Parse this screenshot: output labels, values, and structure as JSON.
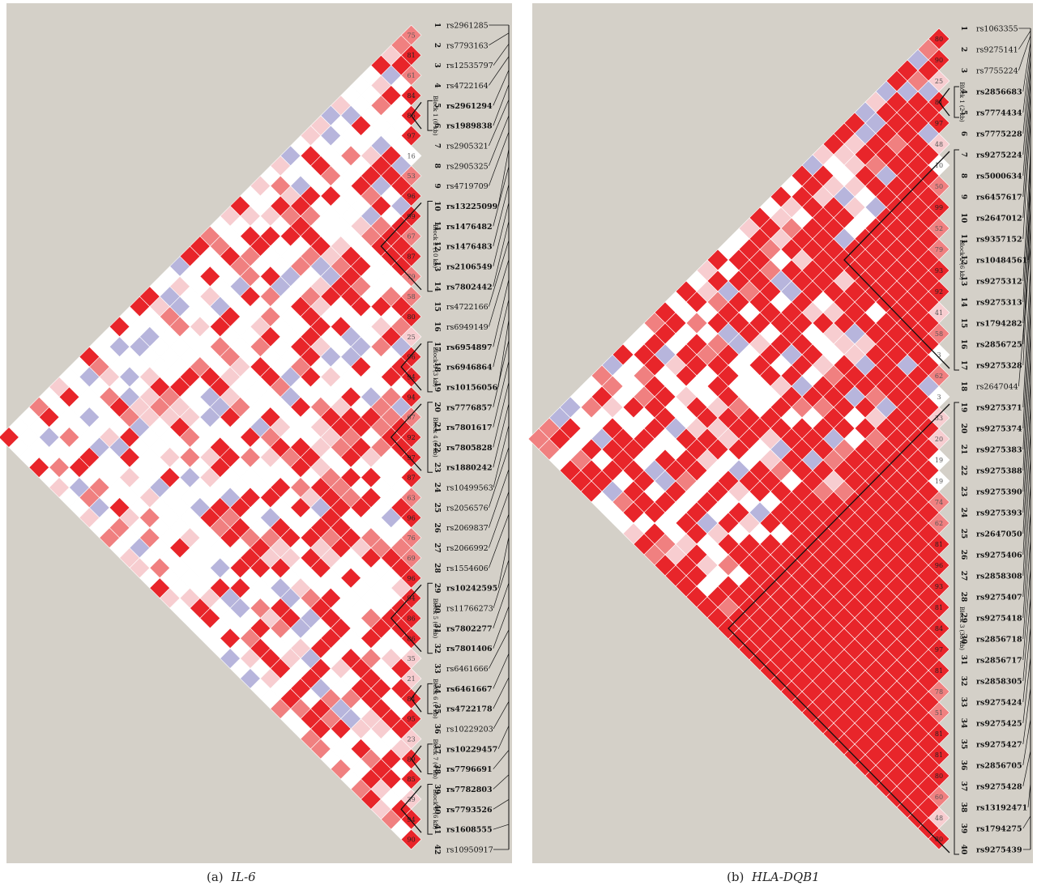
{
  "colors": {
    "background": "#d4d0c8",
    "strong_ld": "#e8252a",
    "moderate_ld": "#f08080",
    "weak_ld": "#f7cdd0",
    "low_ld": "#ffffff",
    "low_lod_high_dprime": "#b7b5dc"
  },
  "chart_data": [
    {
      "type": "heatmap",
      "panel_label": "(a)",
      "gene": "IL-6",
      "snp_count": 42,
      "snps": [
        "rs2961285",
        "rs7793163",
        "rs12535797",
        "rs4722164",
        "rs2961294",
        "rs1989838",
        "rs2905321",
        "rs2905325",
        "rs4719709",
        "rs13225099",
        "rs1476482",
        "rs1476483",
        "rs2106549",
        "rs7802442",
        "rs4722166",
        "rs6949149",
        "rs6954897",
        "rs6946864",
        "rs10156056",
        "rs7776857",
        "rs7801617",
        "rs7805828",
        "rs1880242",
        "rs10499563",
        "rs2056576",
        "rs2069837",
        "rs2066992",
        "rs1554606",
        "rs10242595",
        "rs11766273",
        "rs7802277",
        "rs7801406",
        "rs6461666",
        "rs6461667",
        "rs4722178",
        "rs10229203",
        "rs10229457",
        "rs7796691",
        "rs7782803",
        "rs7793526",
        "rs1608555",
        "rs10950917"
      ],
      "bold_snps": [
        5,
        6,
        10,
        11,
        12,
        13,
        14,
        17,
        18,
        19,
        20,
        21,
        22,
        23,
        29,
        31,
        32,
        34,
        35,
        37,
        38,
        39,
        40,
        41
      ],
      "blocks": [
        {
          "label": "Block 1 (6 kb)",
          "first": 5,
          "last": 6
        },
        {
          "label": "Block 2 (10 kb)",
          "first": 10,
          "last": 14
        },
        {
          "label": "Block 3 (3 kb)",
          "first": 17,
          "last": 19
        },
        {
          "label": "Block 4 (6 kb)",
          "first": 20,
          "last": 23
        },
        {
          "label": "Block 5 (6 kb)",
          "first": 29,
          "last": 32
        },
        {
          "label": "Block 6 (1 kb)",
          "first": 34,
          "last": 35
        },
        {
          "label": "Block 7 (4 kb)",
          "first": 37,
          "last": 38
        },
        {
          "label": "Block 8 (6 kb)",
          "first": 39,
          "last": 41
        }
      ],
      "adjacent_dprime": [
        75,
        81,
        61,
        84,
        86,
        97,
        16,
        53,
        96,
        99,
        67,
        87,
        79,
        58,
        80,
        25,
        96,
        94,
        94,
        67,
        92,
        97,
        87,
        63,
        96,
        76,
        69,
        96,
        94,
        86,
        86,
        35,
        21,
        84,
        95,
        23,
        89,
        85,
        39,
        94,
        90
      ]
    },
    {
      "type": "heatmap",
      "panel_label": "(b)",
      "gene": "HLA-DQB1",
      "snp_count": 40,
      "snps": [
        "rs1063355",
        "rs9275141",
        "rs7755224",
        "rs2856683",
        "rs7774434",
        "rs7775228",
        "rs9275224",
        "rs5000634",
        "rs6457617",
        "rs2647012",
        "rs9357152",
        "rs10484561",
        "rs9275312",
        "rs9275313",
        "rs1794282",
        "rs2856725",
        "rs9275328",
        "rs2647044",
        "rs9275371",
        "rs9275374",
        "rs9275383",
        "rs9275388",
        "rs9275390",
        "rs9275393",
        "rs2647050",
        "rs9275406",
        "rs2858308",
        "rs9275407",
        "rs9275418",
        "rs2856718",
        "rs2856717",
        "rs2858305",
        "rs9275424",
        "rs9275425",
        "rs9275427",
        "rs2856705",
        "rs9275428",
        "rs13192471",
        "rs1794275",
        "rs9275439"
      ],
      "bold_snps": [
        4,
        5,
        6,
        7,
        8,
        9,
        10,
        11,
        12,
        13,
        14,
        15,
        16,
        17,
        19,
        20,
        21,
        22,
        23,
        24,
        25,
        26,
        27,
        28,
        29,
        30,
        31,
        32,
        33,
        34,
        35,
        36,
        37,
        38,
        39,
        40
      ],
      "blocks": [
        {
          "label": "Block 1 (2 kb)",
          "first": 4,
          "last": 5
        },
        {
          "label": "Block 2 (6 kb)",
          "first": 7,
          "last": 17
        },
        {
          "label": "Block 3 (33 kb)",
          "first": 19,
          "last": 40
        }
      ],
      "adjacent_dprime": [
        80,
        90,
        25,
        81,
        97,
        48,
        10,
        50,
        99,
        52,
        79,
        93,
        92,
        41,
        58,
        3,
        62,
        3,
        33,
        20,
        19,
        19,
        74,
        62,
        81,
        96,
        93,
        81,
        84,
        97,
        81,
        78,
        51,
        81,
        81,
        80,
        60,
        48,
        80
      ]
    }
  ],
  "captions": {
    "a_label": "(a)",
    "a_gene": "IL-6",
    "b_label": "(b)",
    "b_gene": "HLA-DQB1"
  }
}
